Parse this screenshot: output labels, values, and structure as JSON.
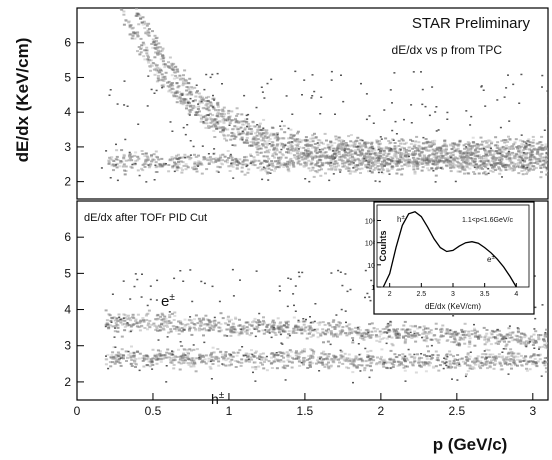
{
  "chart_data": [
    {
      "type": "heatmap",
      "panel": "upper",
      "title": "STAR Preliminary",
      "subtitle": "dE/dx vs p from TPC",
      "ylabel": "dE/dx (KeV/cm)",
      "yticks": [
        "2",
        "3",
        "4",
        "5",
        "6"
      ],
      "ylim": [
        1.5,
        7.0
      ],
      "xlim": [
        0,
        3.1
      ],
      "bands": [
        {
          "x_start": 0.2,
          "x_end": 3.1,
          "y_at_start": 2.6,
          "y_at_end": 2.5
        },
        {
          "x_start": 0.28,
          "x_end": 3.1,
          "y_at_start": 7.0,
          "y_at_end": 2.7
        },
        {
          "x_start": 0.38,
          "x_end": 3.1,
          "y_at_start": 7.0,
          "y_at_end": 3.0
        }
      ]
    },
    {
      "type": "heatmap",
      "panel": "lower",
      "title": "dE/dx after TOFr PID Cut",
      "xlabel": "p (GeV/c)",
      "ylabel": "",
      "xticks": [
        "0",
        "0.5",
        "1",
        "1.5",
        "2",
        "2.5",
        "3"
      ],
      "yticks": [
        "2",
        "3",
        "4",
        "5",
        "6"
      ],
      "xlim": [
        0,
        3.1
      ],
      "ylim": [
        1.5,
        7.0
      ],
      "annotations": [
        {
          "text": "e",
          "sup": "±",
          "x": 0.55,
          "y": 4.55
        },
        {
          "text": "h",
          "sup": "±",
          "x": 1.0,
          "y": 1.9
        }
      ],
      "bands": [
        {
          "name": "h",
          "x_start": 0.18,
          "x_end": 3.1,
          "y_at_start": 2.7,
          "y_at_end": 2.6
        },
        {
          "name": "e",
          "x_start": 0.18,
          "x_end": 3.1,
          "y_at_start": 3.7,
          "y_at_end": 3.2
        }
      ]
    },
    {
      "type": "line",
      "panel": "inset",
      "xlabel": "dE/dx (KeV/cm)",
      "ylabel": "Counts",
      "xticks": [
        "2",
        "2.5",
        "3",
        "3.5",
        "4"
      ],
      "yticks": [
        "1",
        "10",
        "10²",
        "10³"
      ],
      "xlim": [
        1.8,
        4.2
      ],
      "yscale": "log",
      "ylim": [
        1,
        5000
      ],
      "annotations": [
        {
          "text": "h",
          "sup": "±"
        },
        {
          "text": "e",
          "sup": "±"
        },
        {
          "text": "1.1<p<1.6GeV/c"
        }
      ],
      "series": [
        {
          "x": [
            1.9,
            2.0,
            2.1,
            2.2,
            2.3,
            2.4,
            2.5,
            2.6,
            2.7,
            2.8,
            2.9,
            3.0,
            3.1,
            3.2,
            3.3,
            3.4,
            3.5,
            3.6,
            3.7,
            3.8,
            3.9,
            4.0
          ],
          "y": [
            1,
            4,
            60,
            600,
            2000,
            2500,
            1500,
            500,
            150,
            60,
            40,
            45,
            70,
            100,
            110,
            95,
            60,
            35,
            18,
            8,
            3,
            1
          ]
        }
      ]
    }
  ]
}
